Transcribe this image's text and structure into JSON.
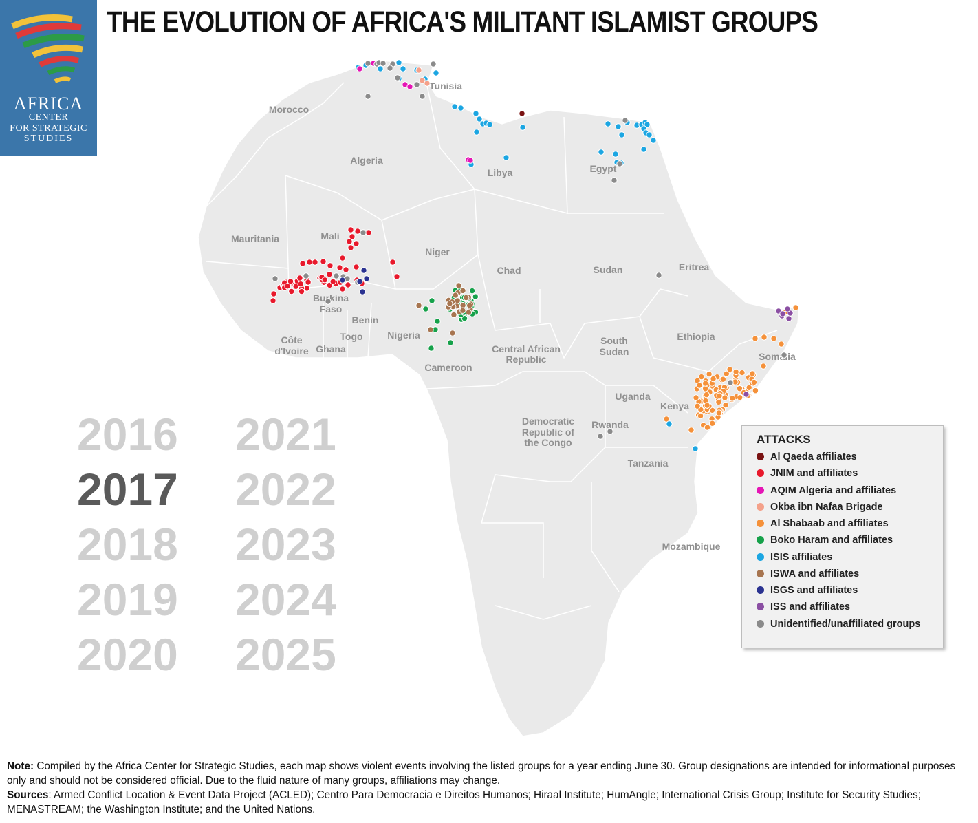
{
  "logo": {
    "line1": "AFRICA",
    "line2": "CENTER",
    "line3": "FOR STRATEGIC",
    "line4": "STUDIES"
  },
  "title": "THE EVOLUTION OF AFRICA'S MILITANT ISLAMIST GROUPS",
  "countries": [
    "Morocco",
    "Tunisia",
    "Algeria",
    "Libya",
    "Egypt",
    "Mauritania",
    "Mali",
    "Niger",
    "Chad",
    "Sudan",
    "Eritrea",
    "Burkina",
    "Faso",
    "Benin",
    "Nigeria",
    "Togo",
    "Côte",
    "d'Ivoire",
    "Ghana",
    "Cameroon",
    "Central African",
    "Republic",
    "South",
    "Sudan",
    "Ethiopia",
    "Somalia",
    "Uganda",
    "Kenya",
    "Democratic",
    "Republic of",
    "the Congo",
    "Rwanda",
    "Tanzania",
    "Mozambique"
  ],
  "years": {
    "left": [
      "2016",
      "2017",
      "2018",
      "2019",
      "2020"
    ],
    "right": [
      "2021",
      "2022",
      "2023",
      "2024",
      "2025"
    ],
    "selected": "2017"
  },
  "legend": {
    "title": "ATTACKS",
    "items": [
      {
        "label": "Al Qaeda affiliates",
        "color": "#7a1313"
      },
      {
        "label": "JNIM and affiliates",
        "color": "#e8192c"
      },
      {
        "label": "AQIM Algeria and affiliates",
        "color": "#e515b5"
      },
      {
        "label": "Okba ibn Nafaa Brigade",
        "color": "#f4a18a"
      },
      {
        "label": "Al Shabaab and affiliates",
        "color": "#f5913a"
      },
      {
        "label": "Boko Haram and affiliates",
        "color": "#16a14a"
      },
      {
        "label": "ISIS affiliates",
        "color": "#1ca6e2"
      },
      {
        "label": "ISWA and affiliates",
        "color": "#a77550"
      },
      {
        "label": "ISGS and affiliates",
        "color": "#2b3391"
      },
      {
        "label": "ISS and affiliates",
        "color": "#8b4fa3"
      },
      {
        "label": "Unidentified/unaffiliated groups",
        "color": "#8b8b8b"
      }
    ]
  },
  "footer": {
    "note_label": "Note:",
    "note_text": " Compiled by the Africa Center for Strategic Studies, each map shows violent events involving the listed groups for a year ending June 30. Group designations are intended for informational purposes only and should not be considered official. Due to the fluid nature of many groups, affiliations may change.",
    "sources_label": "Sources",
    "sources_text": ": Armed Conflict Location & Event Data Project (ACLED); Centro Para Democracia e Direitos Humanos; Hiraal Institute; HumAngle; International Crisis Group; Institute for Security Studies; MENASTREAM; the Washington Institute; and the United Nations."
  }
}
